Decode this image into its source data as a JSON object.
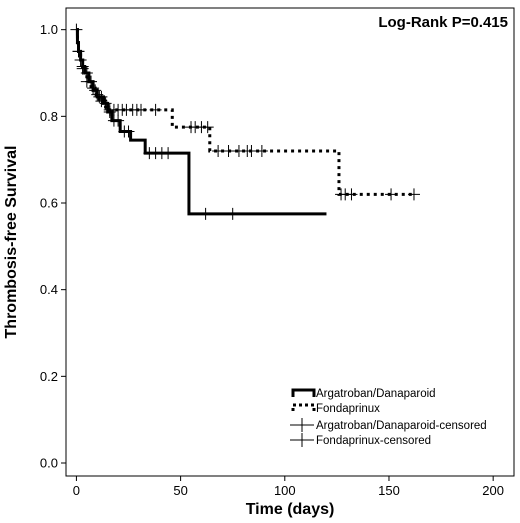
{
  "chart_data": {
    "type": "line",
    "subtype": "kaplan-meier",
    "title": "",
    "annotation": "Log-Rank P=0.415",
    "xlabel": "Time (days)",
    "ylabel": "Thrombosis-free Survival",
    "xlim": [
      -5,
      210
    ],
    "ylim": [
      -0.03,
      1.05
    ],
    "xticks": [
      0,
      50,
      100,
      150,
      200
    ],
    "yticks": [
      0.0,
      0.2,
      0.4,
      0.6,
      0.8,
      1.0
    ],
    "ytick_labels": [
      "0.0",
      "0.2",
      "0.4",
      "0.6",
      "0.8",
      "1.0"
    ],
    "grid": false,
    "legend_position": "bottom-right",
    "legend": [
      "Argatroban/Danaparoid",
      "Fondaprinux",
      "Argatroban/Danaparoid-censored",
      "Fondaprinux-censored"
    ],
    "series": [
      {
        "name": "Argatroban/Danaparoid",
        "style": "solid",
        "color": "#000000",
        "steps": [
          [
            0,
            1.0
          ],
          [
            0.5,
            0.97
          ],
          [
            1,
            0.95
          ],
          [
            2,
            0.93
          ],
          [
            3,
            0.915
          ],
          [
            4,
            0.9
          ],
          [
            6,
            0.88
          ],
          [
            8,
            0.86
          ],
          [
            10,
            0.845
          ],
          [
            13,
            0.83
          ],
          [
            15,
            0.81
          ],
          [
            17,
            0.79
          ],
          [
            21,
            0.765
          ],
          [
            26,
            0.745
          ],
          [
            33,
            0.715
          ],
          [
            54,
            0.575
          ],
          [
            120,
            0.575
          ]
        ],
        "censored": [
          [
            0,
            1.0
          ],
          [
            1,
            0.95
          ],
          [
            2,
            0.93
          ],
          [
            3,
            0.915
          ],
          [
            5,
            0.9
          ],
          [
            7,
            0.88
          ],
          [
            9,
            0.86
          ],
          [
            11,
            0.845
          ],
          [
            12,
            0.845
          ],
          [
            14,
            0.83
          ],
          [
            16,
            0.81
          ],
          [
            18,
            0.79
          ],
          [
            20,
            0.79
          ],
          [
            23,
            0.765
          ],
          [
            25,
            0.765
          ],
          [
            35,
            0.715
          ],
          [
            38,
            0.715
          ],
          [
            41,
            0.715
          ],
          [
            44,
            0.715
          ],
          [
            62,
            0.575
          ],
          [
            75,
            0.575
          ]
        ]
      },
      {
        "name": "Fondaprinux",
        "style": "dotted",
        "color": "#000000",
        "steps": [
          [
            0,
            1.0
          ],
          [
            0.5,
            0.97
          ],
          [
            1,
            0.95
          ],
          [
            2,
            0.93
          ],
          [
            3,
            0.91
          ],
          [
            4,
            0.895
          ],
          [
            5,
            0.88
          ],
          [
            7,
            0.865
          ],
          [
            9,
            0.85
          ],
          [
            11,
            0.835
          ],
          [
            14,
            0.815
          ],
          [
            46,
            0.775
          ],
          [
            64,
            0.72
          ],
          [
            126,
            0.62
          ],
          [
            162,
            0.62
          ]
        ],
        "censored": [
          [
            1,
            0.95
          ],
          [
            3,
            0.91
          ],
          [
            5,
            0.88
          ],
          [
            8,
            0.865
          ],
          [
            10,
            0.85
          ],
          [
            12,
            0.835
          ],
          [
            16,
            0.815
          ],
          [
            18,
            0.815
          ],
          [
            20,
            0.815
          ],
          [
            22,
            0.815
          ],
          [
            24,
            0.815
          ],
          [
            27,
            0.815
          ],
          [
            29,
            0.815
          ],
          [
            31,
            0.815
          ],
          [
            38,
            0.815
          ],
          [
            55,
            0.775
          ],
          [
            57,
            0.775
          ],
          [
            60,
            0.775
          ],
          [
            63,
            0.775
          ],
          [
            68,
            0.72
          ],
          [
            73,
            0.72
          ],
          [
            78,
            0.72
          ],
          [
            82,
            0.72
          ],
          [
            84,
            0.72
          ],
          [
            89,
            0.72
          ],
          [
            127,
            0.62
          ],
          [
            129,
            0.62
          ],
          [
            132,
            0.62
          ],
          [
            151,
            0.62
          ],
          [
            162,
            0.62
          ]
        ]
      }
    ]
  }
}
